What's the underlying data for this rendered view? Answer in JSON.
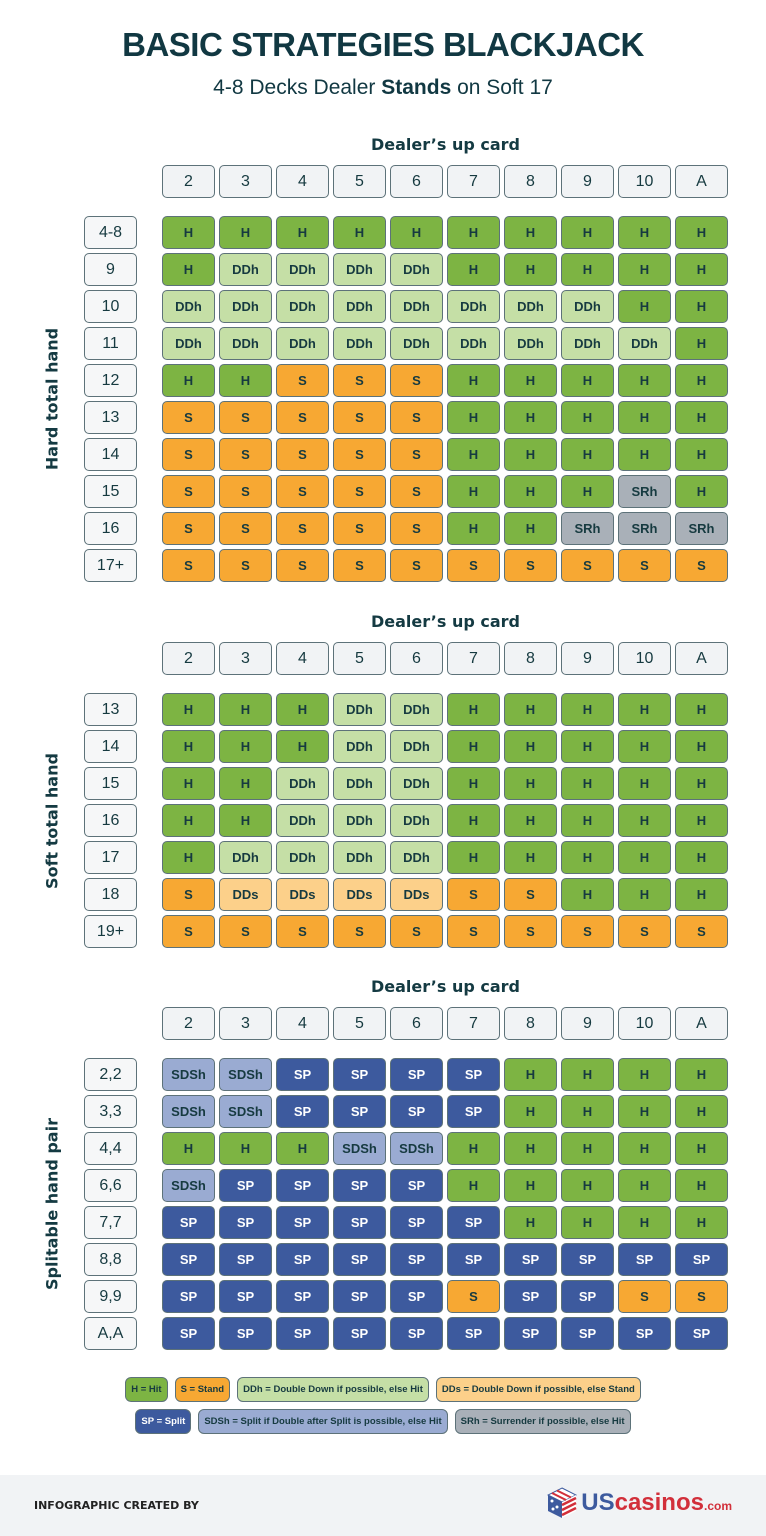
{
  "title": "BASIC STRATEGIES BLACKJACK",
  "subtitle": {
    "pre": "4-8 Decks Dealer ",
    "bold": "Stands",
    "post": " on Soft 17"
  },
  "colors": {
    "H": "#7db443",
    "S": "#f7a833",
    "DDh": "#c5dfa6",
    "DDs": "#fcd08a",
    "SP": "#3d5a9e",
    "SDSh": "#9aabd2",
    "SRh": "#a9b0b8"
  },
  "dealer_cards": [
    "2",
    "3",
    "4",
    "5",
    "6",
    "7",
    "8",
    "9",
    "10",
    "A"
  ],
  "sections": [
    {
      "header": "Dealer’s up card",
      "side_label": "Hard total hand",
      "rows": [
        {
          "label": "4-8",
          "cells": [
            "H",
            "H",
            "H",
            "H",
            "H",
            "H",
            "H",
            "H",
            "H",
            "H"
          ]
        },
        {
          "label": "9",
          "cells": [
            "H",
            "DDh",
            "DDh",
            "DDh",
            "DDh",
            "H",
            "H",
            "H",
            "H",
            "H"
          ]
        },
        {
          "label": "10",
          "cells": [
            "DDh",
            "DDh",
            "DDh",
            "DDh",
            "DDh",
            "DDh",
            "DDh",
            "DDh",
            "H",
            "H"
          ]
        },
        {
          "label": "11",
          "cells": [
            "DDh",
            "DDh",
            "DDh",
            "DDh",
            "DDh",
            "DDh",
            "DDh",
            "DDh",
            "DDh",
            "H"
          ]
        },
        {
          "label": "12",
          "cells": [
            "H",
            "H",
            "S",
            "S",
            "S",
            "H",
            "H",
            "H",
            "H",
            "H"
          ]
        },
        {
          "label": "13",
          "cells": [
            "S",
            "S",
            "S",
            "S",
            "S",
            "H",
            "H",
            "H",
            "H",
            "H"
          ]
        },
        {
          "label": "14",
          "cells": [
            "S",
            "S",
            "S",
            "S",
            "S",
            "H",
            "H",
            "H",
            "H",
            "H"
          ]
        },
        {
          "label": "15",
          "cells": [
            "S",
            "S",
            "S",
            "S",
            "S",
            "H",
            "H",
            "H",
            "SRh",
            "H"
          ]
        },
        {
          "label": "16",
          "cells": [
            "S",
            "S",
            "S",
            "S",
            "S",
            "H",
            "H",
            "SRh",
            "SRh",
            "SRh"
          ]
        },
        {
          "label": "17+",
          "cells": [
            "S",
            "S",
            "S",
            "S",
            "S",
            "S",
            "S",
            "S",
            "S",
            "S"
          ]
        }
      ]
    },
    {
      "header": "Dealer’s up card",
      "side_label": "Soft total hand",
      "rows": [
        {
          "label": "13",
          "cells": [
            "H",
            "H",
            "H",
            "DDh",
            "DDh",
            "H",
            "H",
            "H",
            "H",
            "H"
          ]
        },
        {
          "label": "14",
          "cells": [
            "H",
            "H",
            "H",
            "DDh",
            "DDh",
            "H",
            "H",
            "H",
            "H",
            "H"
          ]
        },
        {
          "label": "15",
          "cells": [
            "H",
            "H",
            "DDh",
            "DDh",
            "DDh",
            "H",
            "H",
            "H",
            "H",
            "H"
          ]
        },
        {
          "label": "16",
          "cells": [
            "H",
            "H",
            "DDh",
            "DDh",
            "DDh",
            "H",
            "H",
            "H",
            "H",
            "H"
          ]
        },
        {
          "label": "17",
          "cells": [
            "H",
            "DDh",
            "DDh",
            "DDh",
            "DDh",
            "H",
            "H",
            "H",
            "H",
            "H"
          ]
        },
        {
          "label": "18",
          "cells": [
            "S",
            "DDs",
            "DDs",
            "DDs",
            "DDs",
            "S",
            "S",
            "H",
            "H",
            "H"
          ]
        },
        {
          "label": "19+",
          "cells": [
            "S",
            "S",
            "S",
            "S",
            "S",
            "S",
            "S",
            "S",
            "S",
            "S"
          ]
        }
      ]
    },
    {
      "header": "Dealer’s up card",
      "side_label": "Splitable hand pair",
      "rows": [
        {
          "label": "2,2",
          "cells": [
            "SDSh",
            "SDSh",
            "SP",
            "SP",
            "SP",
            "SP",
            "H",
            "H",
            "H",
            "H"
          ]
        },
        {
          "label": "3,3",
          "cells": [
            "SDSh",
            "SDSh",
            "SP",
            "SP",
            "SP",
            "SP",
            "H",
            "H",
            "H",
            "H"
          ]
        },
        {
          "label": "4,4",
          "cells": [
            "H",
            "H",
            "H",
            "SDSh",
            "SDSh",
            "H",
            "H",
            "H",
            "H",
            "H"
          ]
        },
        {
          "label": "6,6",
          "cells": [
            "SDSh",
            "SP",
            "SP",
            "SP",
            "SP",
            "H",
            "H",
            "H",
            "H",
            "H"
          ]
        },
        {
          "label": "7,7",
          "cells": [
            "SP",
            "SP",
            "SP",
            "SP",
            "SP",
            "SP",
            "H",
            "H",
            "H",
            "H"
          ]
        },
        {
          "label": "8,8",
          "cells": [
            "SP",
            "SP",
            "SP",
            "SP",
            "SP",
            "SP",
            "SP",
            "SP",
            "SP",
            "SP"
          ]
        },
        {
          "label": "9,9",
          "cells": [
            "SP",
            "SP",
            "SP",
            "SP",
            "SP",
            "S",
            "SP",
            "SP",
            "S",
            "S"
          ]
        },
        {
          "label": "A,A",
          "cells": [
            "SP",
            "SP",
            "SP",
            "SP",
            "SP",
            "SP",
            "SP",
            "SP",
            "SP",
            "SP"
          ]
        }
      ]
    }
  ],
  "legend": [
    [
      {
        "code": "H",
        "text": "H = Hit"
      },
      {
        "code": "S",
        "text": "S = Stand"
      },
      {
        "code": "DDh",
        "text": "DDh = Double Down if possible, else Hit"
      },
      {
        "code": "DDs",
        "text": "DDs = Double Down if possible, else Stand"
      }
    ],
    [
      {
        "code": "SP",
        "text": "SP = Split"
      },
      {
        "code": "SDSh",
        "text": "SDSh = Split if Double after Split is possible, else Hit"
      },
      {
        "code": "SRh",
        "text": "SRh = Surrender if possible, else Hit"
      }
    ]
  ],
  "footer": {
    "credit": "INFOGRAPHIC CREATED BY",
    "logo": {
      "us": "US",
      "casinos": "casinos",
      "dom": ".com",
      "icon": "flag-dice-icon"
    }
  }
}
